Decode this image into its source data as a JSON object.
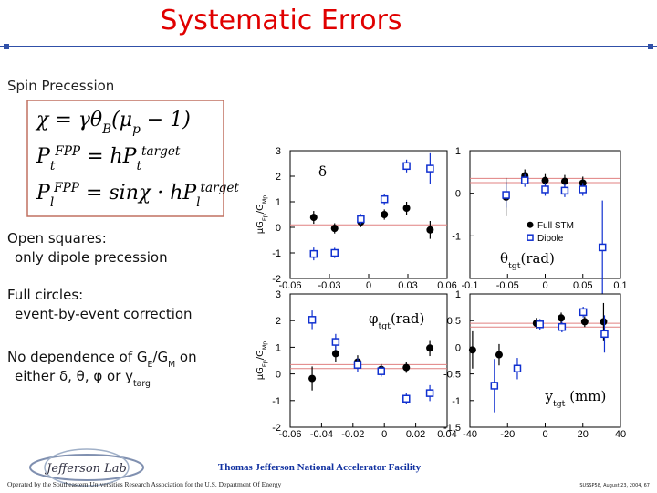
{
  "title": "Systematic Errors",
  "section": "Spin Precession",
  "equations": [
    [
      {
        "t": "χ = γθ"
      },
      {
        "t": "B",
        "s": "sub"
      },
      {
        "t": "(μ"
      },
      {
        "t": "p",
        "s": "sub"
      },
      {
        "t": " − 1)"
      }
    ],
    [
      {
        "t": "P"
      },
      {
        "t": "t",
        "s": "sub"
      },
      {
        "t": "FPP",
        "s": "sup"
      },
      {
        "t": " = hP"
      },
      {
        "t": "t",
        "s": "sub"
      },
      {
        "t": "target",
        "s": "sup"
      }
    ],
    [
      {
        "t": "P"
      },
      {
        "t": "l",
        "s": "sub"
      },
      {
        "t": "FPP",
        "s": "sup"
      },
      {
        "t": " = sinχ · hP"
      },
      {
        "t": "l",
        "s": "sub"
      },
      {
        "t": "target",
        "s": "sup"
      }
    ]
  ],
  "notes": [
    [
      [
        {
          "t": "Open squares:"
        }
      ],
      [
        {
          "t": "only dipole precession"
        }
      ]
    ],
    [
      [
        {
          "t": "Full circles:"
        }
      ],
      [
        {
          "t": "event-by-event correction"
        }
      ]
    ],
    [
      [
        {
          "t": "No dependence of G"
        },
        {
          "t": "E",
          "s": "sub"
        },
        {
          "t": "/G"
        },
        {
          "t": "M",
          "s": "sub"
        },
        {
          "t": " on"
        }
      ],
      [
        {
          "t": "either δ, θ, φ or y"
        },
        {
          "t": "targ",
          "s": "sub"
        }
      ]
    ]
  ],
  "footer": {
    "logo": "Jefferson Lab",
    "lab": "Thomas Jefferson National Accelerator Facility",
    "operated": "Operated by the Southeastern Universities Research Association for the U.S. Department Of Energy",
    "ref": "SUSSP58, August 23, 2004, 67"
  },
  "chart_data": [
    {
      "type": "scatter",
      "ylabel": [
        {
          "t": "μG"
        },
        {
          "t": "Ep",
          "s": "sub"
        },
        {
          "t": "/G"
        },
        {
          "t": "Mp",
          "s": "sub"
        }
      ],
      "annotation": [
        {
          "t": "δ"
        }
      ],
      "xlim": [
        -0.06,
        0.06
      ],
      "xticks": [
        -0.06,
        -0.03,
        0,
        0.03,
        0.06
      ],
      "ylim": [
        -2,
        3
      ],
      "yticks": [
        -2,
        -1,
        0,
        1,
        2,
        3
      ],
      "hlines": [
        0.1
      ],
      "hline_color": "#e08080",
      "series": [
        {
          "name": "Full STM",
          "marker": "circle",
          "color": "#000000",
          "x": [
            -0.042,
            -0.026,
            -0.006,
            0.012,
            0.029,
            0.047
          ],
          "values": [
            0.39,
            -0.04,
            0.21,
            0.5,
            0.75,
            -0.1
          ],
          "errors": [
            0.25,
            0.2,
            0.2,
            0.2,
            0.25,
            0.35
          ]
        },
        {
          "name": "Dipole",
          "marker": "square",
          "color": "#1030d0",
          "x": [
            -0.042,
            -0.026,
            -0.006,
            0.012,
            0.029,
            0.047
          ],
          "values": [
            -1.04,
            -1.0,
            0.32,
            1.1,
            2.4,
            2.3
          ],
          "errors": [
            0.25,
            0.2,
            0.2,
            0.2,
            0.25,
            0.6
          ]
        }
      ]
    },
    {
      "type": "scatter",
      "annotation": [
        {
          "t": "θ"
        },
        {
          "t": "tgt",
          "s": "sub"
        },
        {
          "t": "(rad)"
        }
      ],
      "legend": "lower right",
      "xlim": [
        -0.1,
        0.1
      ],
      "xticks": [
        -0.1,
        -0.05,
        0,
        0.05,
        0.1
      ],
      "ylim": [
        -2,
        1
      ],
      "yticks": [
        -1,
        0,
        1
      ],
      "hlines": [
        0.35,
        0.25
      ],
      "hline_color": "#e08080",
      "series": [
        {
          "name": "Full STM",
          "marker": "circle",
          "color": "#000000",
          "x": [
            -0.052,
            -0.027,
            0,
            0.026,
            0.05
          ],
          "values": [
            -0.09,
            0.41,
            0.3,
            0.28,
            0.24
          ],
          "errors": [
            0.45,
            0.15,
            0.15,
            0.15,
            0.15
          ]
        },
        {
          "name": "Dipole",
          "marker": "square",
          "color": "#1030d0",
          "x": [
            -0.052,
            -0.027,
            0,
            0.026,
            0.05,
            0.076
          ],
          "values": [
            -0.04,
            0.3,
            0.09,
            0.06,
            0.09,
            -1.27
          ],
          "errors": [
            0.3,
            0.15,
            0.15,
            0.15,
            0.15,
            1.1
          ]
        }
      ]
    },
    {
      "type": "scatter",
      "ylabel": [
        {
          "t": "μG"
        },
        {
          "t": "Ep",
          "s": "sub"
        },
        {
          "t": "/G"
        },
        {
          "t": "Mp",
          "s": "sub"
        }
      ],
      "annotation": [
        {
          "t": "φ"
        },
        {
          "t": "tgt",
          "s": "sub"
        },
        {
          "t": "(rad)"
        }
      ],
      "xlim": [
        -0.06,
        0.04
      ],
      "xticks": [
        -0.06,
        -0.04,
        -0.02,
        0,
        0.02,
        0.04
      ],
      "ylim": [
        -2,
        3
      ],
      "yticks": [
        -2,
        -1,
        0,
        1,
        2,
        3
      ],
      "hlines": [
        0.35,
        0.2
      ],
      "hline_color": "#e08080",
      "series": [
        {
          "name": "Full STM",
          "marker": "circle",
          "color": "#000000",
          "x": [
            -0.046,
            -0.031,
            -0.017,
            -0.002,
            0.014,
            0.029
          ],
          "values": [
            -0.17,
            0.76,
            0.45,
            0.17,
            0.24,
            0.97
          ],
          "errors": [
            0.45,
            0.3,
            0.25,
            0.2,
            0.2,
            0.3
          ]
        },
        {
          "name": "Dipole",
          "marker": "square",
          "color": "#1030d0",
          "x": [
            -0.046,
            -0.031,
            -0.017,
            -0.002,
            0.014,
            0.029
          ],
          "values": [
            2.03,
            1.2,
            0.34,
            0.1,
            -0.93,
            -0.72
          ],
          "errors": [
            0.35,
            0.3,
            0.25,
            0.2,
            0.2,
            0.3
          ]
        }
      ]
    },
    {
      "type": "scatter",
      "annotation": [
        {
          "t": "y"
        },
        {
          "t": "tgt",
          "s": "sub"
        },
        {
          "t": " (mm)"
        }
      ],
      "xlim": [
        -40,
        40
      ],
      "xticks": [
        -40,
        -20,
        0,
        20,
        40
      ],
      "ylim": [
        -1.5,
        1
      ],
      "yticks": [
        -1.5,
        -1,
        -0.5,
        0,
        0.5,
        1
      ],
      "hlines": [
        0.45,
        0.38
      ],
      "hline_color": "#e08080",
      "series": [
        {
          "name": "Full STM",
          "marker": "circle",
          "color": "#000000",
          "x": [
            -38.6,
            -24.5,
            -4.7,
            8.5,
            21,
            31
          ],
          "values": [
            -0.05,
            -0.14,
            0.45,
            0.55,
            0.48,
            0.48
          ],
          "errors": [
            0.35,
            0.2,
            0.1,
            0.1,
            0.1,
            0.35
          ]
        },
        {
          "name": "Dipole",
          "marker": "square",
          "color": "#1030d0",
          "x": [
            -27,
            -14.8,
            -2.8,
            8.9,
            20.2,
            31.5
          ],
          "values": [
            -0.72,
            -0.4,
            0.43,
            0.38,
            0.66,
            0.25
          ],
          "errors": [
            0.5,
            0.2,
            0.1,
            0.1,
            0.1,
            0.35
          ]
        }
      ]
    }
  ]
}
